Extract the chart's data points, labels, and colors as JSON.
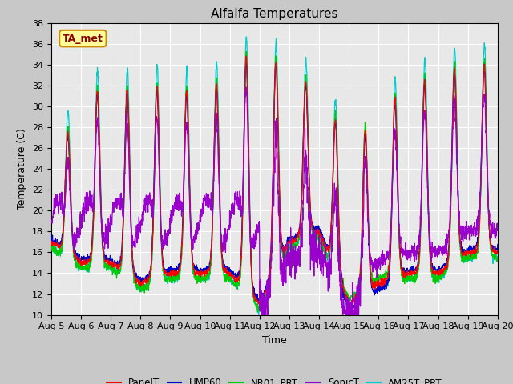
{
  "title": "Alfalfa Temperatures",
  "xlabel": "Time",
  "ylabel": "Temperature (C)",
  "ylim": [
    10,
    38
  ],
  "n_points": 2160,
  "series_colors": {
    "PanelT": "#ff0000",
    "HMP60": "#0000cc",
    "NR01_PRT": "#00cc00",
    "SonicT": "#9900cc",
    "AM25T_PRT": "#00cccc"
  },
  "legend_box_facecolor": "#ffff99",
  "legend_box_edgecolor": "#cc8800",
  "legend_text": "TA_met",
  "legend_text_color": "#880000",
  "plot_bg_color": "#e8e8e8",
  "fig_bg_color": "#c8c8c8",
  "xtick_labels": [
    "Aug 5",
    "Aug 6",
    "Aug 7",
    "Aug 8",
    "Aug 9",
    "Aug 10",
    "Aug 11",
    "Aug 12",
    "Aug 13",
    "Aug 14",
    "Aug 15",
    "Aug 16",
    "Aug 17",
    "Aug 18",
    "Aug 19",
    "Aug 20"
  ],
  "ytick_values": [
    10,
    12,
    14,
    16,
    18,
    20,
    22,
    24,
    26,
    28,
    30,
    32,
    34,
    36,
    38
  ]
}
